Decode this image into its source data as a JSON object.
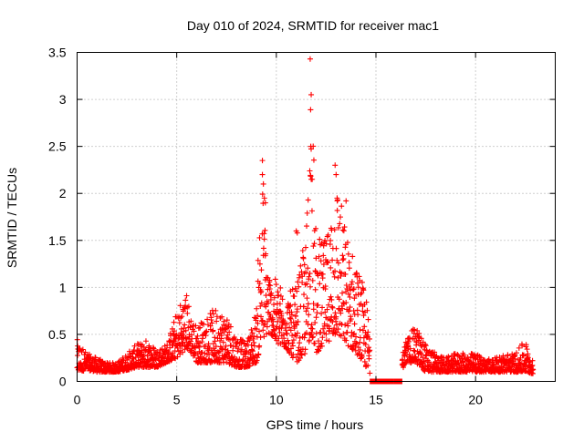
{
  "chart_data": {
    "type": "scatter",
    "title": "Day 010 of 2024, SRMTID for receiver mac1",
    "xlabel": "GPS time / hours",
    "ylabel": "SRMTID / TECUs",
    "xlim": [
      0,
      24
    ],
    "ylim": [
      0,
      3.5
    ],
    "x_ticks": [
      0,
      5,
      10,
      15,
      20
    ],
    "y_ticks": [
      0,
      0.5,
      1,
      1.5,
      2,
      2.5,
      3,
      3.5
    ],
    "x_tick_labels": [
      "0",
      "5",
      "10",
      "15",
      "20"
    ],
    "y_tick_labels": [
      "0",
      "0.5",
      "1",
      "1.5",
      "2",
      "2.5",
      "3",
      "3.5"
    ],
    "grid": true,
    "marker": "+",
    "color": "#ff0000",
    "series": [
      {
        "name": "SRMTID",
        "envelope": {
          "x": [
            0,
            0.5,
            1,
            1.5,
            2,
            2.5,
            3,
            3.5,
            4,
            4.5,
            5,
            5.25,
            5.5,
            5.75,
            6,
            6.5,
            7,
            7.5,
            8,
            8.5,
            9,
            9.25,
            9.5,
            9.75,
            10,
            10.5,
            11,
            11.5,
            11.75,
            12,
            12.5,
            13,
            13.5,
            14,
            14.4,
            14.6,
            15,
            15.5,
            16,
            16.5,
            17,
            17.5,
            18,
            18.5,
            19,
            19.5,
            20,
            20.5,
            21,
            21.5,
            22,
            22.5,
            22.9
          ],
          "y_low": [
            0.1,
            0.12,
            0.1,
            0.1,
            0.1,
            0.12,
            0.15,
            0.15,
            0.15,
            0.2,
            0.25,
            0.3,
            0.35,
            0.3,
            0.2,
            0.2,
            0.2,
            0.2,
            0.15,
            0.15,
            0.2,
            0.4,
            0.5,
            0.5,
            0.4,
            0.35,
            0.2,
            0.3,
            0.5,
            0.3,
            0.4,
            0.5,
            0.4,
            0.3,
            0.2,
            0.1,
            0,
            0,
            0,
            0.2,
            0.2,
            0.1,
            0.1,
            0.1,
            0.1,
            0.1,
            0.1,
            0.1,
            0.1,
            0.1,
            0.1,
            0.1,
            0.08
          ],
          "y_high": [
            0.45,
            0.3,
            0.25,
            0.2,
            0.2,
            0.3,
            0.4,
            0.45,
            0.35,
            0.4,
            0.75,
            0.9,
            0.95,
            0.7,
            0.6,
            0.7,
            0.8,
            0.75,
            0.5,
            0.4,
            0.8,
            2.35,
            1.5,
            1.05,
            1.1,
            0.95,
            1.0,
            1.6,
            3.43,
            1.55,
            1.5,
            2.3,
            1.6,
            1.3,
            1.0,
            0.8,
            0,
            0,
            0,
            0.45,
            0.6,
            0.4,
            0.3,
            0.25,
            0.3,
            0.3,
            0.3,
            0.25,
            0.25,
            0.3,
            0.3,
            0.45,
            0.2
          ]
        },
        "outliers": [
          {
            "x": 11.7,
            "y": 3.43
          },
          {
            "x": 11.75,
            "y": 3.05
          },
          {
            "x": 11.72,
            "y": 2.89
          },
          {
            "x": 11.73,
            "y": 2.5
          },
          {
            "x": 11.75,
            "y": 2.15
          },
          {
            "x": 11.8,
            "y": 2.15
          },
          {
            "x": 9.3,
            "y": 2.35
          },
          {
            "x": 9.3,
            "y": 2.2
          },
          {
            "x": 9.35,
            "y": 2.1
          },
          {
            "x": 9.4,
            "y": 1.95
          },
          {
            "x": 9.45,
            "y": 1.9
          },
          {
            "x": 12.95,
            "y": 2.3
          },
          {
            "x": 13.0,
            "y": 2.2
          },
          {
            "x": 13.05,
            "y": 1.95
          },
          {
            "x": 13.5,
            "y": 1.92
          },
          {
            "x": 11.0,
            "y": 1.6
          },
          {
            "x": 11.05,
            "y": 1.58
          }
        ],
        "gap_x": [
          14.7,
          16.3
        ],
        "gap_y": 0
      }
    ]
  }
}
